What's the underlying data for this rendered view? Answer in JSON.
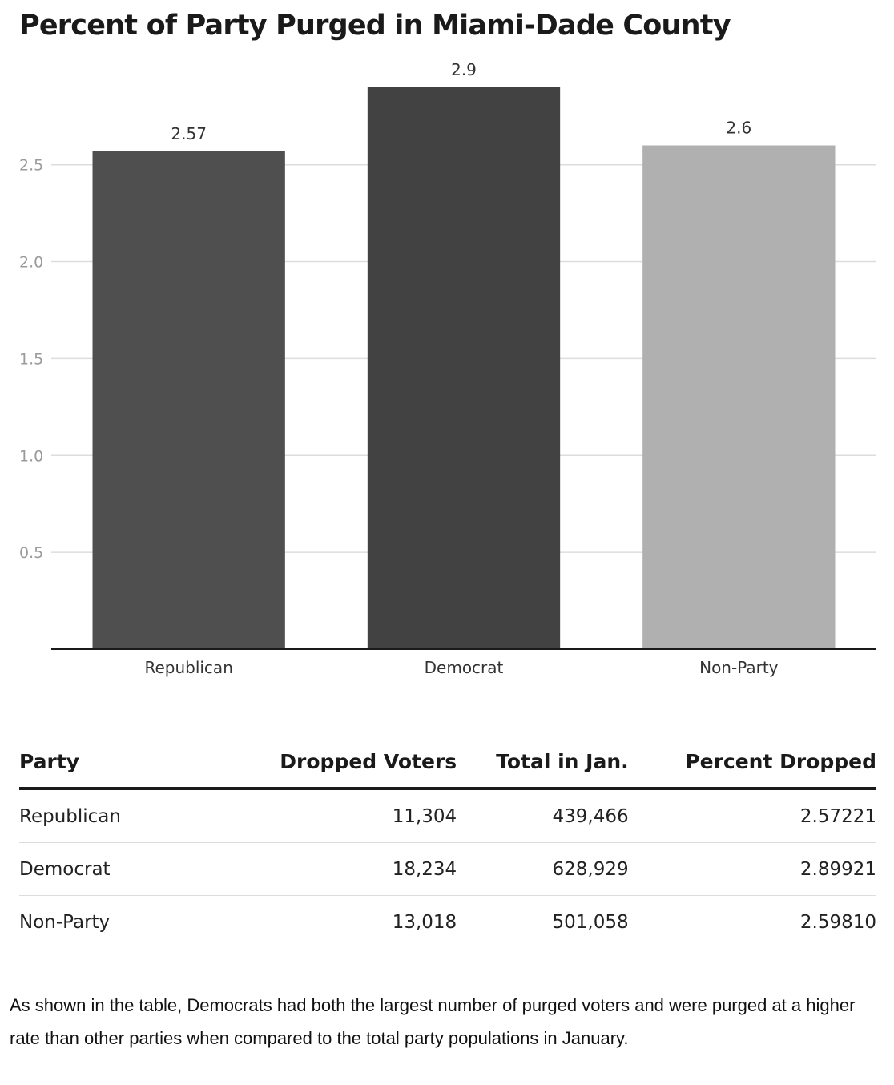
{
  "chart_data": {
    "type": "bar",
    "title": "Percent of Party Purged in Miami-Dade County",
    "xlabel": "",
    "ylabel": "",
    "categories": [
      "Republican",
      "Democrat",
      "Non-Party"
    ],
    "values": [
      2.57,
      2.9,
      2.6
    ],
    "data_labels": [
      "2.57",
      "2.9",
      "2.6"
    ],
    "colors": [
      "#4f4f4f",
      "#424242",
      "#b0b0b0"
    ],
    "ylim": [
      0,
      2.9
    ],
    "yticks": [
      0.5,
      1.0,
      1.5,
      2.0,
      2.5
    ],
    "ytick_labels": [
      "0.5",
      "1.0",
      "1.5",
      "2.0",
      "2.5"
    ],
    "grid": true,
    "legend": "none"
  },
  "table": {
    "headers": [
      "Party",
      "Dropped Voters",
      "Total in Jan.",
      "Percent Dropped"
    ],
    "rows": [
      [
        "Republican",
        "11,304",
        "439,466",
        "2.57221"
      ],
      [
        "Democrat",
        "18,234",
        "628,929",
        "2.89921"
      ],
      [
        "Non-Party",
        "13,018",
        "501,058",
        "2.59810"
      ]
    ]
  },
  "note": "As shown in the table, Democrats had both the largest number of purged voters and were purged at a higher rate than other parties when compared to the total party populations in January."
}
